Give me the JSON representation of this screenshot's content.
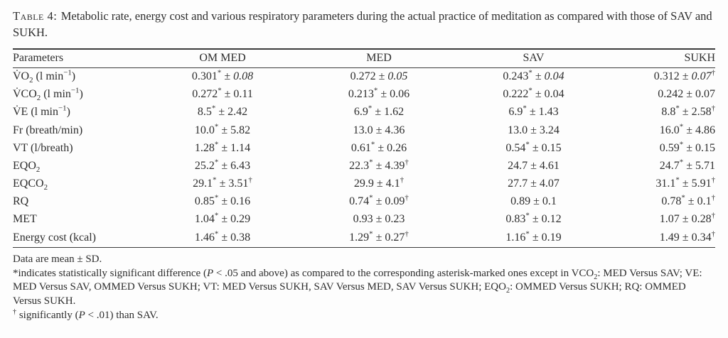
{
  "caption": {
    "label": "Table 4:",
    "text": "Metabolic rate, energy cost and various respiratory parameters during the actual practice of meditation as compared with those of SAV and SUKH."
  },
  "colors": {
    "text": "#2d2d2d",
    "rule": "#3c3c3c",
    "background": "#fdfdfd"
  },
  "table": {
    "columns": [
      "Parameters",
      "OM MED",
      "MED",
      "SAV",
      "SUKH"
    ],
    "rows": [
      {
        "param": [
          {
            "t": "V̇O"
          },
          {
            "t": "2",
            "sub": true
          },
          {
            "t": " (l min"
          },
          {
            "t": "−1",
            "sup": true
          },
          {
            "t": ")"
          }
        ],
        "cells": [
          {
            "m": "0.301",
            "star": true,
            "sd": "0.08",
            "it": true
          },
          {
            "m": "0.272",
            "sd": "0.05",
            "it": true
          },
          {
            "m": "0.243",
            "star": true,
            "sd": "0.04",
            "it": true
          },
          {
            "m": "0.312",
            "sd": "0.07",
            "it": true,
            "dag": true
          }
        ]
      },
      {
        "param": [
          {
            "t": "V̇CO"
          },
          {
            "t": "2",
            "sub": true
          },
          {
            "t": " (l min"
          },
          {
            "t": "−1",
            "sup": true
          },
          {
            "t": ")"
          }
        ],
        "cells": [
          {
            "m": "0.272",
            "star": true,
            "sd": "0.11"
          },
          {
            "m": "0.213",
            "star": true,
            "sd": "0.06"
          },
          {
            "m": "0.222",
            "star": true,
            "sd": "0.04"
          },
          {
            "m": "0.242",
            "sd": "0.07"
          }
        ]
      },
      {
        "param": [
          {
            "t": "V̇E (l min"
          },
          {
            "t": "−1",
            "sup": true
          },
          {
            "t": ")"
          }
        ],
        "cells": [
          {
            "m": "8.5",
            "star": true,
            "sd": "2.42"
          },
          {
            "m": "6.9",
            "star": true,
            "sd": "1.62"
          },
          {
            "m": "6.9",
            "star": true,
            "sd": "1.43"
          },
          {
            "m": "8.8",
            "star": true,
            "sd": "2.58",
            "dag": true
          }
        ]
      },
      {
        "param": [
          {
            "t": "Fr (breath/min)"
          }
        ],
        "cells": [
          {
            "m": "10.0",
            "star": true,
            "sd": "5.82"
          },
          {
            "m": "13.0",
            "sd": "4.36"
          },
          {
            "m": "13.0",
            "sd": "3.24"
          },
          {
            "m": "16.0",
            "star": true,
            "sd": "4.86"
          }
        ]
      },
      {
        "param": [
          {
            "t": "VT (l/breath)"
          }
        ],
        "cells": [
          {
            "m": "1.28",
            "star": true,
            "sd": "1.14"
          },
          {
            "m": "0.61",
            "star": true,
            "sd": "0.26"
          },
          {
            "m": "0.54",
            "star": true,
            "sd": "0.15"
          },
          {
            "m": "0.59",
            "star": true,
            "sd": "0.15"
          }
        ]
      },
      {
        "param": [
          {
            "t": "EQO"
          },
          {
            "t": "2",
            "sub": true
          }
        ],
        "cells": [
          {
            "m": "25.2",
            "star": true,
            "sd": "6.43"
          },
          {
            "m": "22.3",
            "star": true,
            "sd": "4.39",
            "dag": true
          },
          {
            "m": "24.7",
            "sd": "4.61"
          },
          {
            "m": "24.7",
            "star": true,
            "sd": "5.71"
          }
        ]
      },
      {
        "param": [
          {
            "t": "EQCO"
          },
          {
            "t": "2",
            "sub": true
          }
        ],
        "cells": [
          {
            "m": "29.1",
            "star": true,
            "sd": "3.51",
            "dag": true
          },
          {
            "m": "29.9",
            "sd": "4.1",
            "dag": true
          },
          {
            "m": "27.7",
            "sd": "4.07"
          },
          {
            "m": "31.1",
            "star": true,
            "sd": "5.91",
            "dag": true
          }
        ]
      },
      {
        "param": [
          {
            "t": "RQ"
          }
        ],
        "cells": [
          {
            "m": "0.85",
            "star": true,
            "sd": "0.16"
          },
          {
            "m": "0.74",
            "star": true,
            "sd": "0.09",
            "dag": true
          },
          {
            "m": "0.89",
            "sd": "0.1"
          },
          {
            "m": "0.78",
            "star": true,
            "sd": "0.1",
            "dag": true
          }
        ]
      },
      {
        "param": [
          {
            "t": "MET"
          }
        ],
        "cells": [
          {
            "m": "1.04",
            "star": true,
            "sd": "0.29"
          },
          {
            "m": "0.93",
            "sd": "0.23"
          },
          {
            "m": "0.83",
            "star": true,
            "sd": "0.12"
          },
          {
            "m": "1.07",
            "sd": "0.28",
            "dag": true
          }
        ]
      },
      {
        "param": [
          {
            "t": "Energy cost (kcal)"
          }
        ],
        "cells": [
          {
            "m": "1.46",
            "star": true,
            "sd": "0.38"
          },
          {
            "m": "1.29",
            "star": true,
            "sd": "0.27",
            "dag": true
          },
          {
            "m": "1.16",
            "star": true,
            "sd": "0.19"
          },
          {
            "m": "1.49",
            "sd": "0.34",
            "dag": true
          }
        ]
      }
    ]
  },
  "footnotes": [
    [
      {
        "t": "Data are mean ± SD."
      }
    ],
    [
      {
        "t": "*"
      },
      {
        "t": "indicates statistically significant difference ("
      },
      {
        "t": "P",
        "i": true
      },
      {
        "t": " < .05 and above) as compared to the corresponding asterisk-marked ones except in VCO"
      },
      {
        "t": "2",
        "sub": true
      },
      {
        "t": ": MED Versus SAV; VE: MED Versus SAV, OMMED Versus SUKH; VT: MED Versus SUKH, SAV Versus MED, SAV Versus SUKH; EQO"
      },
      {
        "t": "2",
        "sub": true
      },
      {
        "t": ": OMMED Versus SUKH; RQ: OMMED Versus SUKH."
      }
    ],
    [
      {
        "t": "†",
        "sup": true
      },
      {
        "t": " significantly ("
      },
      {
        "t": "P",
        "i": true
      },
      {
        "t": " < .01) than SAV."
      }
    ]
  ]
}
